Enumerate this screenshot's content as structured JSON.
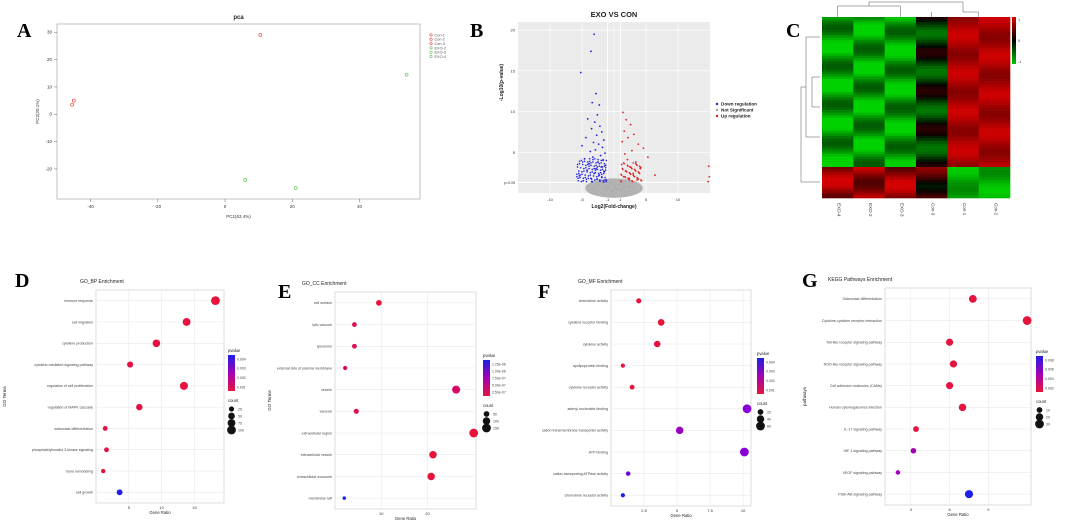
{
  "panel_labels": [
    "A",
    "B",
    "C",
    "D",
    "E",
    "F",
    "G"
  ],
  "chart_data": [
    {
      "id": "A",
      "type": "scatter",
      "title": "pca",
      "xlabel": "PC1(63.4%)",
      "ylabel": "PC2(20.1%)",
      "xlim": [
        -50,
        58
      ],
      "ylim": [
        -31,
        33
      ],
      "xticks": [
        -40,
        -20,
        0,
        20,
        40
      ],
      "yticks": [
        -20,
        -10,
        0,
        10,
        20,
        30
      ],
      "grid": false,
      "legend": "top-right",
      "series": [
        {
          "name": "Con-1",
          "color": "#e8494a",
          "x": [
            10.5
          ],
          "y": [
            29
          ]
        },
        {
          "name": "Con-2",
          "color": "#e8494a",
          "x": [
            -45
          ],
          "y": [
            5
          ]
        },
        {
          "name": "Con-3",
          "color": "#e8494a",
          "x": [
            -45.5
          ],
          "y": [
            3.5
          ]
        },
        {
          "name": "EXO-2",
          "color": "#5cc35c",
          "x": [
            6
          ],
          "y": [
            -24
          ]
        },
        {
          "name": "EXO-3",
          "color": "#5cc35c",
          "x": [
            21
          ],
          "y": [
            -27
          ]
        },
        {
          "name": "EXO-4",
          "color": "#5cc35c",
          "x": [
            54
          ],
          "y": [
            14.5
          ]
        }
      ]
    },
    {
      "id": "B",
      "type": "scatter",
      "title": "EXO VS CON",
      "xlabel": "Log2(Fold-change)",
      "ylabel": "-Log10(p-value)",
      "xlim": [
        -15,
        15
      ],
      "ylim": [
        0,
        21
      ],
      "xticks": [
        -10,
        -5,
        -1,
        1,
        5,
        10
      ],
      "yticks": [
        5,
        10,
        15,
        20
      ],
      "ytick_label_extra": "p=0.05",
      "threshold_y": 1.3,
      "threshold_x": [
        -1,
        1
      ],
      "grid": true,
      "legend": "right",
      "series": [
        {
          "name": "Down regulation",
          "color": "#1f1fe0",
          "points": [
            [
              -3.1,
              19.5
            ],
            [
              -3.6,
              17.4
            ],
            [
              -5.2,
              14.8
            ],
            [
              -2.8,
              12.2
            ],
            [
              -3.4,
              11.1
            ],
            [
              -2.3,
              10.8
            ],
            [
              -2.6,
              9.6
            ],
            [
              -4.1,
              9.1
            ],
            [
              -3.0,
              8.7
            ],
            [
              -2.2,
              8.2
            ],
            [
              -3.5,
              7.9
            ],
            [
              -1.9,
              7.5
            ],
            [
              -2.7,
              7.1
            ],
            [
              -4.4,
              6.8
            ],
            [
              -1.6,
              6.5
            ],
            [
              -3.2,
              6.2
            ],
            [
              -2.4,
              6.0
            ],
            [
              -5.0,
              5.8
            ],
            [
              -1.8,
              5.6
            ],
            [
              -2.9,
              5.3
            ],
            [
              -3.7,
              5.1
            ],
            [
              -1.4,
              4.9
            ],
            [
              -2.1,
              4.6
            ],
            [
              -3.3,
              4.4
            ],
            [
              -4.6,
              4.2
            ],
            [
              -1.7,
              4.0
            ],
            [
              -2.5,
              3.8
            ],
            [
              -3.9,
              3.6
            ],
            [
              -1.3,
              3.4
            ],
            [
              -2.0,
              3.2
            ],
            [
              -2.8,
              3.0
            ],
            [
              -4.2,
              2.8
            ],
            [
              -1.5,
              2.6
            ],
            [
              -3.1,
              2.4
            ],
            [
              -2.3,
              2.2
            ],
            [
              -5.4,
              2.1
            ],
            [
              -1.9,
              1.9
            ],
            [
              -3.6,
              1.8
            ],
            [
              -2.6,
              1.7
            ],
            [
              -1.2,
              1.6
            ],
            [
              -4.8,
              1.5
            ],
            [
              -2.2,
              1.45
            ],
            [
              -3.4,
              1.4
            ],
            [
              -1.6,
              1.35
            ]
          ]
        },
        {
          "name": "Not Significant",
          "color": "#a9a9a9",
          "points": [
            [
              -0.5,
              0.3
            ],
            [
              0.4,
              0.5
            ],
            [
              -0.8,
              0.8
            ],
            [
              0.9,
              0.4
            ],
            [
              -0.2,
              1.1
            ],
            [
              0.2,
              0.9
            ],
            [
              -1.5,
              0.6
            ],
            [
              1.6,
              0.7
            ],
            [
              -2.5,
              0.9
            ],
            [
              2.4,
              0.8
            ],
            [
              -0.6,
              1.2
            ],
            [
              0.7,
              1.0
            ],
            [
              -3.2,
              0.5
            ],
            [
              3.0,
              0.6
            ],
            [
              -0.1,
              0.2
            ],
            [
              0.1,
              0.6
            ],
            [
              -1.1,
              0.4
            ],
            [
              1.2,
              0.3
            ],
            [
              -4.0,
              0.8
            ],
            [
              4.2,
              0.7
            ]
          ]
        },
        {
          "name": "Up regulation",
          "color": "#e01f1f",
          "points": [
            [
              1.4,
              9.9
            ],
            [
              1.9,
              9.0
            ],
            [
              2.6,
              8.4
            ],
            [
              1.6,
              7.6
            ],
            [
              3.1,
              7.2
            ],
            [
              2.2,
              6.8
            ],
            [
              1.3,
              6.3
            ],
            [
              3.8,
              6.0
            ],
            [
              4.6,
              5.5
            ],
            [
              2.8,
              5.2
            ],
            [
              1.7,
              4.8
            ],
            [
              5.3,
              4.4
            ],
            [
              2.1,
              4.1
            ],
            [
              3.4,
              3.8
            ],
            [
              1.2,
              3.5
            ],
            [
              2.5,
              3.2
            ],
            [
              4.1,
              3.0
            ],
            [
              1.8,
              2.7
            ],
            [
              3.0,
              2.4
            ],
            [
              6.4,
              2.2
            ],
            [
              1.5,
              2.0
            ],
            [
              2.4,
              1.8
            ],
            [
              3.6,
              1.6
            ],
            [
              1.1,
              1.45
            ],
            [
              14.8,
              3.3
            ],
            [
              14.9,
              2.0
            ],
            [
              14.7,
              1.4
            ]
          ]
        }
      ]
    },
    {
      "id": "C",
      "type": "heatmap",
      "columns": [
        "EXO-4",
        "EXO-2",
        "EXO-3",
        "Con-3",
        "Con-1",
        "Con-2"
      ],
      "scale_labels": [
        "1",
        "0",
        "-1"
      ],
      "scale_colors": [
        "#e00000",
        "#000000",
        "#00c800"
      ]
    },
    {
      "id": "D",
      "type": "scatter",
      "title": "GO_BP Enrichment",
      "xlabel": "Gene Ratio",
      "ylabel": "GO Terms",
      "xlim": [
        0,
        19.5
      ],
      "xticks": [
        5,
        10,
        15
      ],
      "categories": [
        "immune response",
        "cell migration",
        "cytokine production",
        "cytokine-mediated signaling pathway",
        "regulation of cell proliferation",
        "regulation of MAPK cascade",
        "osteoclast differentiation",
        "phosphatidylinositol 3-kinase signaling",
        "bone remodeling",
        "cell growth"
      ],
      "values": [
        18.2,
        13.8,
        9.2,
        5.2,
        13.4,
        6.6,
        1.4,
        1.6,
        1.1,
        3.6
      ],
      "count": [
        100,
        75,
        70,
        40,
        80,
        45,
        20,
        20,
        15,
        35
      ],
      "pvalue": [
        0.0002,
        0.0003,
        0.0003,
        0.0004,
        0.0003,
        0.0004,
        0.0004,
        0.0004,
        0.0004,
        0.0048
      ],
      "legend_pvalue_title": "pvalue",
      "legend_pvalue_ticks": [
        "0.004",
        "0.003",
        "0.002",
        "0.001"
      ],
      "legend_count_title": "count",
      "legend_count_ticks": [
        25,
        50,
        75,
        100
      ]
    },
    {
      "id": "E",
      "type": "scatter",
      "title": "GO_CC Enrichment",
      "xlabel": "Gene Ratio",
      "ylabel": "GO Terms",
      "xlim": [
        0,
        30.5
      ],
      "xticks": [
        10,
        20
      ],
      "categories": [
        "cell surface",
        "lytic vacuole",
        "lysosome",
        "external side of plasma membrane",
        "vesicle",
        "vacuole",
        "extracellular region",
        "extracellular vesicle",
        "extracellular exosome",
        "membrane raft"
      ],
      "values": [
        9.5,
        4.2,
        4.2,
        2.2,
        26.2,
        4.6,
        30.0,
        21.2,
        20.8,
        2.0
      ],
      "count": [
        50,
        30,
        30,
        20,
        120,
        35,
        150,
        100,
        100,
        10
      ],
      "pvalue": [
        1e-07,
        2e-07,
        2e-07,
        3e-07,
        3e-07,
        2e-07,
        1e-07,
        1e-07,
        1e-07,
        1.2e-06
      ],
      "legend_pvalue_title": "pvalue",
      "legend_pvalue_ticks": [
        "1.25e-06",
        "1.00e-06",
        "7.50e-07",
        "5.00e-07",
        "2.50e-07"
      ],
      "legend_count_title": "count",
      "legend_count_ticks": [
        50,
        100,
        150
      ]
    },
    {
      "id": "F",
      "type": "scatter",
      "title": "GO_MF Enrichment",
      "xlabel": "Gene Ratio",
      "ylabel": "",
      "xlim": [
        0,
        10.6
      ],
      "xticks": [
        2.5,
        5.0,
        7.5,
        10.0
      ],
      "categories": [
        "chemokine activity",
        "cytokine receptor binding",
        "cytokine activity",
        "apolipoprotein binding",
        "cytokine receptor activity",
        "adenyl nucleotide binding",
        "cation transmembrane transporter activity",
        "ATP binding",
        "cation-transporting ATPase activity",
        "chemokine receptor activity"
      ],
      "values": [
        2.1,
        3.8,
        3.5,
        0.9,
        1.6,
        10.3,
        5.2,
        10.1,
        1.3,
        0.9
      ],
      "count": [
        15,
        30,
        28,
        8,
        12,
        60,
        40,
        60,
        10,
        8
      ],
      "pvalue": [
        0.0002,
        0.0002,
        0.0002,
        0.0002,
        0.0002,
        0.0025,
        0.0022,
        0.0025,
        0.0028,
        0.0038
      ],
      "legend_pvalue_title": "pvalue",
      "legend_pvalue_ticks": [
        "0.004",
        "0.003",
        "0.002",
        "0.001"
      ],
      "legend_count_title": "count",
      "legend_count_ticks": [
        20,
        40,
        60
      ]
    },
    {
      "id": "G",
      "type": "scatter",
      "title": "KEGG Pathways Enrichment",
      "xlabel": "Gene Ratio",
      "ylabel": "pathways",
      "xlim": [
        1,
        12.3
      ],
      "xticks": [
        3,
        6,
        9
      ],
      "categories": [
        "Osteoclast differentiation",
        "Cytokine-cytokine receptor interaction",
        "Toll-like receptor signaling pathway",
        "NOD-like receptor signaling pathway",
        "Cell adhesion molecules (CAMs)",
        "Human cytomegalovirus infection",
        "IL-17 signaling pathway",
        "HIF-1 signaling pathway",
        "VEGF signaling pathway",
        "PI3K-Akt signaling pathway"
      ],
      "values": [
        7.8,
        12.0,
        6.0,
        6.3,
        6.0,
        7.0,
        3.4,
        3.2,
        2.0,
        7.5
      ],
      "count": [
        22,
        30,
        18,
        18,
        18,
        20,
        10,
        9,
        5,
        25
      ],
      "pvalue": [
        0.0004,
        0.0003,
        0.0004,
        0.0004,
        0.0004,
        0.0004,
        0.0004,
        0.0042,
        0.0045,
        0.0082
      ],
      "legend_pvalue_title": "pvalue",
      "legend_pvalue_ticks": [
        "0.008",
        "0.006",
        "0.004",
        "0.002"
      ],
      "legend_count_title": "count",
      "legend_count_ticks": [
        10,
        20,
        30
      ]
    }
  ]
}
